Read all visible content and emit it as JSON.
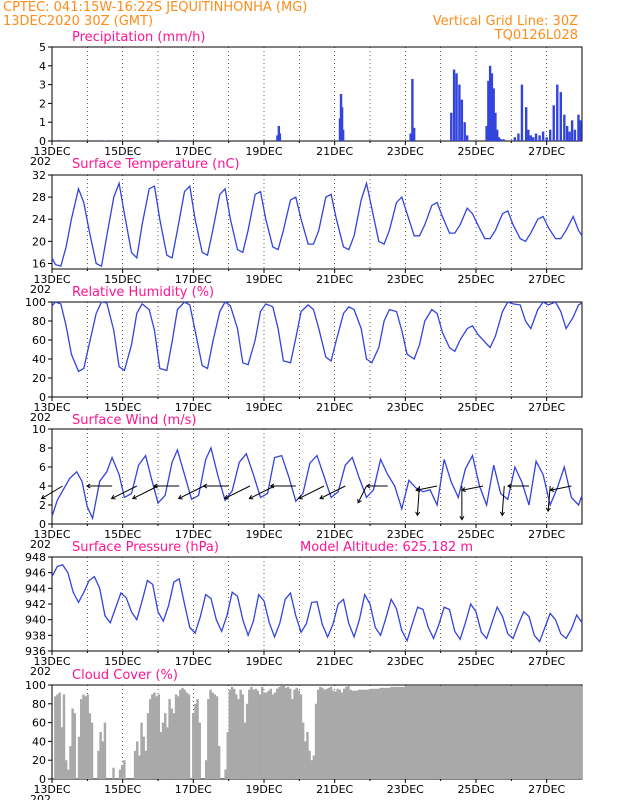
{
  "header": {
    "line1": "CPTEC:   041:15W-16:22S   JEQUITINHONHA (MG)",
    "line2": "13DEC2020 30Z (GMT)",
    "grid_note": "Vertical Grid Line: 30Z",
    "code": "TQ0126L028"
  },
  "x_axis": {
    "tick_labels": [
      "13DEC",
      "15DEC",
      "17DEC",
      "19DEC",
      "21DEC",
      "23DEC",
      "25DEC",
      "27DEC"
    ],
    "cut_label": "202"
  },
  "colors": {
    "header": "#ff8c1a",
    "title": "#ff1493",
    "line": "#3344dd",
    "cloud": "#a9a9a9"
  },
  "chart_data": [
    {
      "type": "bar",
      "title": "Precipitation (mm/h)",
      "ylim": [
        0,
        5
      ],
      "yticks": [
        0,
        1,
        2,
        3,
        4,
        5
      ],
      "x_days": [
        0.2,
        1.5,
        3.2,
        6.38,
        6.42,
        6.45,
        8.15,
        8.18,
        8.21,
        8.24,
        10.15,
        10.2,
        10.25,
        11.3,
        11.38,
        11.45,
        11.53,
        11.6,
        11.68,
        11.75,
        12.3,
        12.35,
        12.4,
        12.45,
        12.5,
        12.55,
        12.6,
        12.65,
        12.7,
        12.78,
        13.1,
        13.2,
        13.3,
        13.42,
        13.48,
        13.55,
        13.62,
        13.7,
        13.8,
        13.9,
        14.0,
        14.1,
        14.2,
        14.3,
        14.4,
        14.5,
        14.58,
        14.65,
        14.72,
        14.8,
        14.9,
        14.96
      ],
      "values": [
        0.05,
        0.03,
        0.04,
        0.3,
        0.8,
        0.4,
        1.2,
        2.5,
        1.8,
        0.6,
        0.4,
        3.3,
        0.7,
        1.5,
        3.8,
        3.6,
        3.0,
        2.2,
        1.0,
        0.3,
        0.8,
        3.2,
        4.0,
        3.6,
        2.8,
        1.5,
        0.6,
        0.2,
        0.1,
        0.1,
        0.2,
        0.4,
        3.0,
        1.8,
        0.6,
        0.3,
        0.2,
        0.4,
        0.3,
        0.5,
        0.2,
        0.6,
        1.9,
        3.0,
        2.6,
        1.4,
        0.8,
        0.5,
        1.1,
        0.6,
        1.4,
        1.1
      ]
    },
    {
      "type": "line",
      "title": "Surface Temperature (nC)",
      "ylim": [
        15,
        32
      ],
      "yticks": [
        16,
        20,
        24,
        28,
        32
      ],
      "x_days": [
        0,
        0.1,
        0.25,
        0.4,
        0.55,
        0.75,
        0.9,
        1.05,
        1.25,
        1.4,
        1.55,
        1.75,
        1.9,
        2.05,
        2.25,
        2.4,
        2.55,
        2.75,
        2.9,
        3.05,
        3.25,
        3.4,
        3.55,
        3.75,
        3.9,
        4.05,
        4.25,
        4.4,
        4.55,
        4.75,
        4.9,
        5.05,
        5.25,
        5.4,
        5.55,
        5.75,
        5.9,
        6.05,
        6.25,
        6.4,
        6.55,
        6.75,
        6.9,
        7.05,
        7.25,
        7.4,
        7.55,
        7.75,
        7.9,
        8.05,
        8.25,
        8.4,
        8.55,
        8.75,
        8.9,
        9.05,
        9.25,
        9.4,
        9.55,
        9.75,
        9.9,
        10.05,
        10.25,
        10.4,
        10.55,
        10.75,
        10.9,
        11.05,
        11.25,
        11.4,
        11.55,
        11.75,
        11.9,
        12.05,
        12.25,
        12.4,
        12.55,
        12.75,
        12.9,
        13.05,
        13.25,
        13.4,
        13.55,
        13.75,
        13.9,
        14.05,
        14.25,
        14.4,
        14.55,
        14.75,
        14.9,
        15.0
      ],
      "values": [
        17,
        15.8,
        15.5,
        19,
        24,
        29.5,
        27,
        22,
        16,
        15.5,
        21,
        28,
        30.5,
        25,
        18,
        17,
        23,
        29.5,
        30,
        24,
        17.5,
        17,
        22,
        29,
        30,
        24,
        18,
        17.5,
        22,
        28.5,
        29.5,
        24,
        18.5,
        18,
        22,
        28.5,
        29,
        24,
        19,
        18.5,
        22,
        27.5,
        28,
        24,
        19.5,
        19.5,
        22,
        28,
        28.5,
        24,
        19,
        18.5,
        21,
        27.5,
        30.5,
        26,
        20,
        19.5,
        22,
        27,
        28,
        25,
        21,
        21,
        23,
        26.5,
        27,
        24.5,
        21.5,
        21.5,
        23,
        26,
        25,
        23,
        20.5,
        20.5,
        22,
        25,
        25.5,
        23,
        20.5,
        20,
        21.5,
        24,
        24.5,
        22.5,
        20.5,
        20.5,
        22,
        24.5,
        22,
        21
      ]
    },
    {
      "type": "line",
      "title": "Relative Humidity (%)",
      "ylim": [
        0,
        100
      ],
      "yticks": [
        0,
        20,
        40,
        60,
        80,
        100
      ],
      "x_days": [
        0,
        0.1,
        0.25,
        0.4,
        0.55,
        0.75,
        0.9,
        1.05,
        1.25,
        1.4,
        1.55,
        1.75,
        1.9,
        2.05,
        2.25,
        2.4,
        2.55,
        2.75,
        2.9,
        3.05,
        3.25,
        3.4,
        3.55,
        3.75,
        3.9,
        4.05,
        4.25,
        4.4,
        4.55,
        4.75,
        4.9,
        5.05,
        5.25,
        5.4,
        5.55,
        5.75,
        5.9,
        6.05,
        6.25,
        6.4,
        6.55,
        6.75,
        6.9,
        7.05,
        7.25,
        7.4,
        7.55,
        7.75,
        7.9,
        8.05,
        8.25,
        8.4,
        8.55,
        8.75,
        8.9,
        9.05,
        9.25,
        9.4,
        9.55,
        9.75,
        9.9,
        10.05,
        10.25,
        10.4,
        10.55,
        10.75,
        10.9,
        11.05,
        11.25,
        11.4,
        11.55,
        11.75,
        11.9,
        12.05,
        12.25,
        12.4,
        12.55,
        12.75,
        12.9,
        13.05,
        13.25,
        13.4,
        13.55,
        13.75,
        13.9,
        14.05,
        14.25,
        14.4,
        14.55,
        14.75,
        14.9,
        15.0
      ],
      "values": [
        96,
        100,
        98,
        75,
        45,
        27,
        30,
        55,
        88,
        100,
        99,
        70,
        32,
        28,
        55,
        88,
        98,
        92,
        70,
        30,
        28,
        58,
        92,
        100,
        97,
        70,
        33,
        30,
        58,
        90,
        100,
        96,
        72,
        36,
        34,
        60,
        90,
        98,
        95,
        72,
        38,
        36,
        62,
        90,
        97,
        92,
        72,
        42,
        38,
        60,
        88,
        95,
        92,
        72,
        40,
        36,
        52,
        80,
        92,
        90,
        70,
        45,
        40,
        55,
        80,
        92,
        88,
        68,
        52,
        48,
        60,
        72,
        75,
        66,
        58,
        52,
        64,
        90,
        100,
        98,
        97,
        80,
        72,
        92,
        100,
        97,
        100,
        90,
        72,
        84,
        97,
        99
      ]
    },
    {
      "type": "line",
      "title": "Surface Wind (m/s)",
      "ylim": [
        0,
        10
      ],
      "yticks": [
        0,
        2,
        4,
        6,
        8,
        10
      ],
      "x_days": [
        0,
        0.15,
        0.3,
        0.5,
        0.7,
        0.85,
        1.0,
        1.15,
        1.35,
        1.55,
        1.7,
        1.9,
        2.05,
        2.25,
        2.45,
        2.65,
        2.8,
        3.0,
        3.2,
        3.4,
        3.55,
        3.75,
        3.95,
        4.15,
        4.35,
        4.5,
        4.7,
        4.9,
        5.1,
        5.3,
        5.5,
        5.7,
        5.9,
        6.1,
        6.3,
        6.5,
        6.7,
        6.9,
        7.1,
        7.3,
        7.5,
        7.7,
        7.9,
        8.1,
        8.3,
        8.5,
        8.7,
        8.9,
        9.1,
        9.3,
        9.5,
        9.7,
        9.9,
        10.1,
        10.3,
        10.5,
        10.7,
        10.9,
        11.1,
        11.3,
        11.5,
        11.7,
        11.9,
        12.1,
        12.3,
        12.5,
        12.7,
        12.9,
        13.1,
        13.3,
        13.5,
        13.7,
        13.9,
        14.1,
        14.3,
        14.5,
        14.7,
        14.9,
        15.0
      ],
      "values": [
        0.8,
        2.5,
        3.5,
        4.8,
        5.5,
        4.5,
        1.8,
        0.6,
        4.5,
        5.5,
        7.0,
        5.2,
        2.8,
        3.2,
        6.2,
        7.2,
        5.0,
        2.2,
        3.0,
        6.5,
        7.8,
        5.2,
        2.6,
        3.0,
        6.8,
        8.0,
        5.0,
        2.5,
        3.5,
        6.5,
        7.4,
        5.2,
        2.8,
        3.2,
        7.0,
        7.2,
        5.0,
        2.4,
        3.2,
        6.4,
        7.2,
        5.0,
        2.8,
        3.4,
        6.2,
        7.0,
        4.8,
        2.8,
        3.6,
        6.8,
        5.2,
        4.0,
        1.6,
        4.6,
        3.8,
        3.4,
        3.6,
        2.0,
        6.8,
        4.4,
        2.8,
        5.8,
        7.2,
        4.0,
        2.0,
        6.2,
        3.2,
        2.6,
        6.0,
        4.4,
        2.0,
        6.6,
        5.2,
        2.0,
        3.8,
        6.0,
        2.8,
        2.0,
        3.0
      ],
      "vectors": {
        "x_days": [
          0.3,
          1.7,
          2.4,
          3.0,
          3.6,
          4.3,
          5.0,
          5.6,
          6.3,
          6.9,
          7.7,
          8.3,
          8.9,
          9.5,
          10.4,
          10.9,
          11.6,
          12.2,
          12.8,
          13.5,
          14.1,
          14.7
        ],
        "u": [
          -5,
          -6,
          -6,
          -6,
          -6,
          -6,
          -6,
          -6,
          -6,
          -6,
          -6,
          -6,
          -2,
          -5,
          -0.5,
          -5,
          0,
          -5,
          -0.5,
          -5,
          -0.5,
          -5
        ],
        "v": [
          -3,
          0,
          -3,
          -3,
          0,
          -3,
          0,
          -3,
          -3,
          0,
          -3,
          -3,
          -4,
          0,
          -7,
          -1,
          -8,
          -1,
          -7,
          0,
          -6,
          -1
        ]
      }
    },
    {
      "type": "line",
      "title": "Surface Pressure (hPa)",
      "annotation": "Model Altitude: 625.182 m",
      "ylim": [
        936,
        948
      ],
      "yticks": [
        936,
        938,
        940,
        942,
        944,
        946,
        948
      ],
      "x_days": [
        0,
        0.15,
        0.3,
        0.45,
        0.6,
        0.75,
        0.9,
        1.05,
        1.2,
        1.35,
        1.5,
        1.65,
        1.8,
        1.95,
        2.1,
        2.25,
        2.4,
        2.55,
        2.7,
        2.85,
        3.0,
        3.15,
        3.3,
        3.45,
        3.6,
        3.75,
        3.9,
        4.05,
        4.2,
        4.35,
        4.5,
        4.65,
        4.8,
        4.95,
        5.1,
        5.25,
        5.4,
        5.55,
        5.7,
        5.85,
        6.0,
        6.15,
        6.3,
        6.45,
        6.6,
        6.75,
        6.9,
        7.05,
        7.2,
        7.35,
        7.5,
        7.65,
        7.8,
        7.95,
        8.1,
        8.25,
        8.4,
        8.55,
        8.7,
        8.85,
        9.0,
        9.15,
        9.3,
        9.45,
        9.6,
        9.75,
        9.9,
        10.05,
        10.2,
        10.35,
        10.5,
        10.65,
        10.8,
        10.95,
        11.1,
        11.25,
        11.4,
        11.55,
        11.7,
        11.85,
        12.0,
        12.15,
        12.3,
        12.45,
        12.6,
        12.75,
        12.9,
        13.05,
        13.2,
        13.35,
        13.5,
        13.65,
        13.8,
        13.95,
        14.1,
        14.25,
        14.4,
        14.55,
        14.7,
        14.85,
        15.0
      ],
      "values": [
        945.5,
        946.8,
        947.0,
        946.0,
        943.5,
        942.2,
        943.5,
        945.0,
        945.5,
        944.0,
        940.5,
        939.6,
        941.5,
        943.4,
        942.8,
        941.0,
        940.0,
        942.4,
        945.0,
        944.5,
        941.0,
        939.8,
        941.8,
        944.8,
        945.2,
        942.0,
        939.0,
        938.3,
        940.4,
        943.2,
        942.7,
        940.0,
        938.5,
        940.5,
        943.5,
        943.0,
        940.0,
        938.0,
        939.8,
        943.2,
        942.4,
        939.6,
        937.8,
        939.6,
        942.6,
        943.4,
        940.5,
        938.4,
        939.5,
        942.2,
        942.3,
        939.4,
        937.8,
        939.4,
        942.0,
        942.6,
        939.5,
        937.8,
        940.0,
        943.2,
        942.0,
        939.0,
        938.0,
        940.2,
        942.6,
        941.4,
        938.6,
        937.3,
        939.5,
        941.6,
        941.3,
        939.0,
        937.6,
        939.4,
        941.6,
        941.3,
        938.5,
        937.5,
        939.6,
        942.0,
        941.0,
        938.4,
        937.6,
        939.6,
        941.6,
        940.4,
        938.2,
        937.6,
        939.4,
        941.0,
        940.4,
        938.0,
        937.2,
        939.0,
        940.8,
        940.0,
        938.2,
        937.6,
        938.8,
        940.6,
        939.6
      ]
    },
    {
      "type": "bar",
      "title": "Cloud Cover (%)",
      "ylim": [
        0,
        100
      ],
      "yticks": [
        0,
        20,
        40,
        60,
        80,
        100
      ],
      "values": [
        0,
        88,
        90,
        92,
        55,
        90,
        20,
        10,
        35,
        75,
        70,
        0,
        45,
        85,
        90,
        88,
        90,
        70,
        60,
        0,
        0,
        30,
        50,
        40,
        60,
        0,
        0,
        0,
        12,
        0,
        0,
        10,
        15,
        20,
        0,
        0,
        0,
        0,
        30,
        40,
        25,
        60,
        45,
        30,
        70,
        85,
        90,
        92,
        88,
        90,
        50,
        60,
        70,
        55,
        85,
        75,
        70,
        90,
        88,
        95,
        97,
        95,
        92,
        90,
        0,
        70,
        80,
        85,
        60,
        0,
        0,
        20,
        85,
        95,
        92,
        90,
        88,
        35,
        0,
        0,
        10,
        50,
        95,
        98,
        96,
        90,
        85,
        95,
        90,
        60,
        80,
        95,
        98,
        95,
        96,
        94,
        90,
        98,
        92,
        92,
        94,
        96,
        90,
        92,
        96,
        98,
        99,
        99,
        97,
        98,
        96,
        85,
        95,
        97,
        94,
        90,
        60,
        40,
        50,
        30,
        20,
        25,
        80,
        95,
        98,
        97,
        95,
        96,
        97,
        98,
        94,
        93,
        96,
        95,
        92,
        96,
        98,
        99,
        95,
        94,
        94,
        94,
        95,
        95,
        95,
        95,
        95,
        95,
        96,
        96,
        96,
        96,
        97,
        97,
        97,
        97,
        97,
        98,
        98,
        98,
        98,
        98,
        98,
        98,
        99,
        99,
        99,
        99,
        99,
        99,
        99,
        99,
        99,
        99,
        99,
        99,
        99,
        99,
        99,
        99,
        99,
        99,
        99,
        99,
        99,
        99,
        99,
        99,
        99,
        99,
        99,
        99,
        99,
        99,
        99,
        99,
        99,
        99,
        99,
        99,
        99,
        99,
        99,
        99,
        99,
        99,
        99,
        99,
        99,
        99,
        99,
        99,
        99,
        99,
        99,
        99,
        99,
        99,
        99,
        99,
        99,
        99,
        99,
        99,
        99,
        99,
        99,
        99,
        99,
        99,
        99,
        99,
        99,
        99,
        99,
        99,
        99,
        99,
        99,
        99,
        99,
        99,
        99,
        99,
        99,
        99
      ]
    }
  ]
}
